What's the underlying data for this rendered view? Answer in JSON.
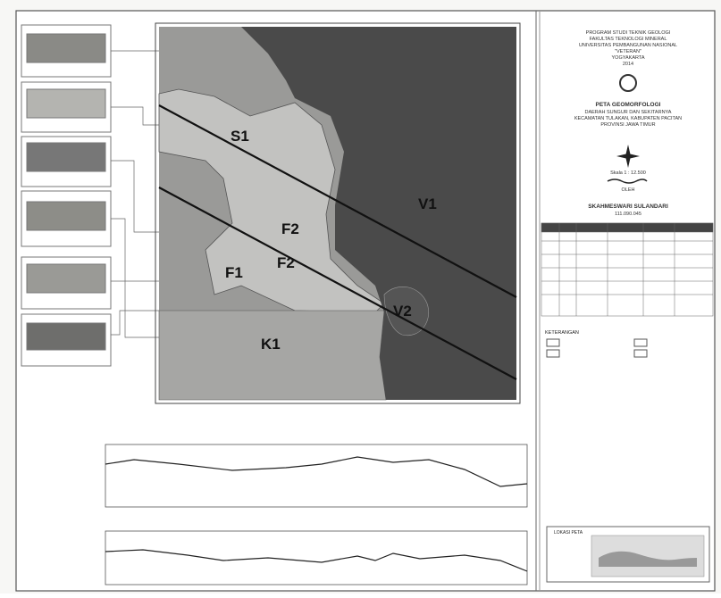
{
  "header": {
    "program": "PROGRAM STUDI TEKNIK GEOLOGI",
    "faculty": "FAKULTAS TEKNOLOGI MINERAL",
    "university": "UNIVERSITAS PEMBANGUNAN NASIONAL",
    "veteran": "\"VETERAN\"",
    "city": "YOGYAKARTA",
    "year": "2014"
  },
  "map_title": {
    "title": "PETA GEOMORFOLOGI",
    "area": "DAERAH SUNGUR DAN SEKITARNYA",
    "district": "KECAMATAN TULAKAN, KABUPATEN PACITAN",
    "province": "PROVINSI JAWA TIMUR"
  },
  "scale": "Skala 1 : 12.500",
  "by": "OLEH",
  "author": {
    "name": "SKAHMESWARI SULANDARI",
    "id": "111.090.045"
  },
  "legend_title": "KETERANGAN",
  "locator_title": "LOKASI PETA",
  "map": {
    "units": [
      "S1",
      "V1",
      "F2",
      "F2",
      "F1",
      "K1",
      "V2"
    ]
  }
}
